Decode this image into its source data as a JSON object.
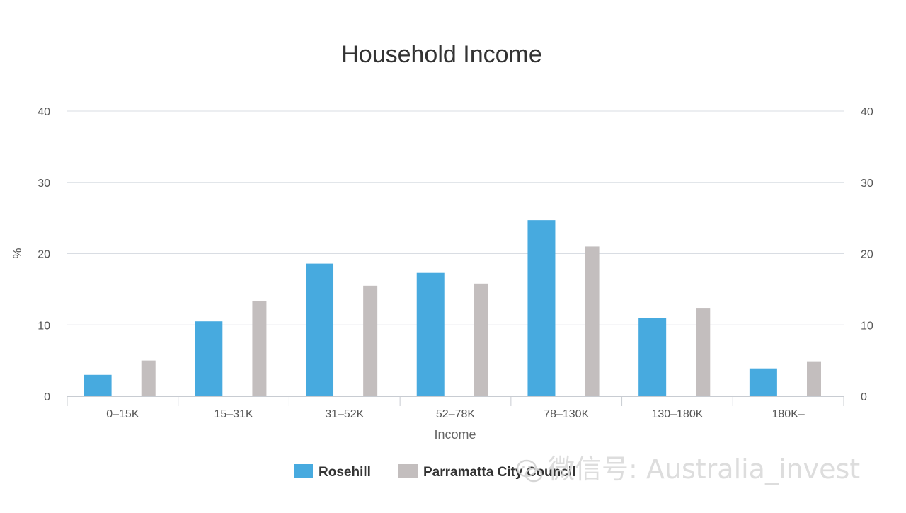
{
  "chart_data": {
    "type": "bar",
    "title": "Household Income",
    "xlabel": "Income",
    "ylabel": "%",
    "ylim": [
      0,
      40
    ],
    "yticks": [
      0,
      10,
      20,
      30,
      40
    ],
    "grid": true,
    "legend_position": "bottom",
    "secondary_y_axis_mirrors_primary": true,
    "categories": [
      "0–15K",
      "15–31K",
      "31–52K",
      "52–78K",
      "78–130K",
      "130–180K",
      "180K–"
    ],
    "series": [
      {
        "name": "Rosehill",
        "color": "#47aadf",
        "values": [
          3.0,
          10.5,
          18.6,
          17.3,
          24.7,
          11.0,
          3.9
        ]
      },
      {
        "name": "Parramatta City Council",
        "color": "#c3bebe",
        "values": [
          5.0,
          13.4,
          15.5,
          15.8,
          21.0,
          12.4,
          4.9
        ]
      }
    ]
  },
  "watermark": {
    "text": "微信号: Australia_invest",
    "icon": "wechat-icon"
  }
}
